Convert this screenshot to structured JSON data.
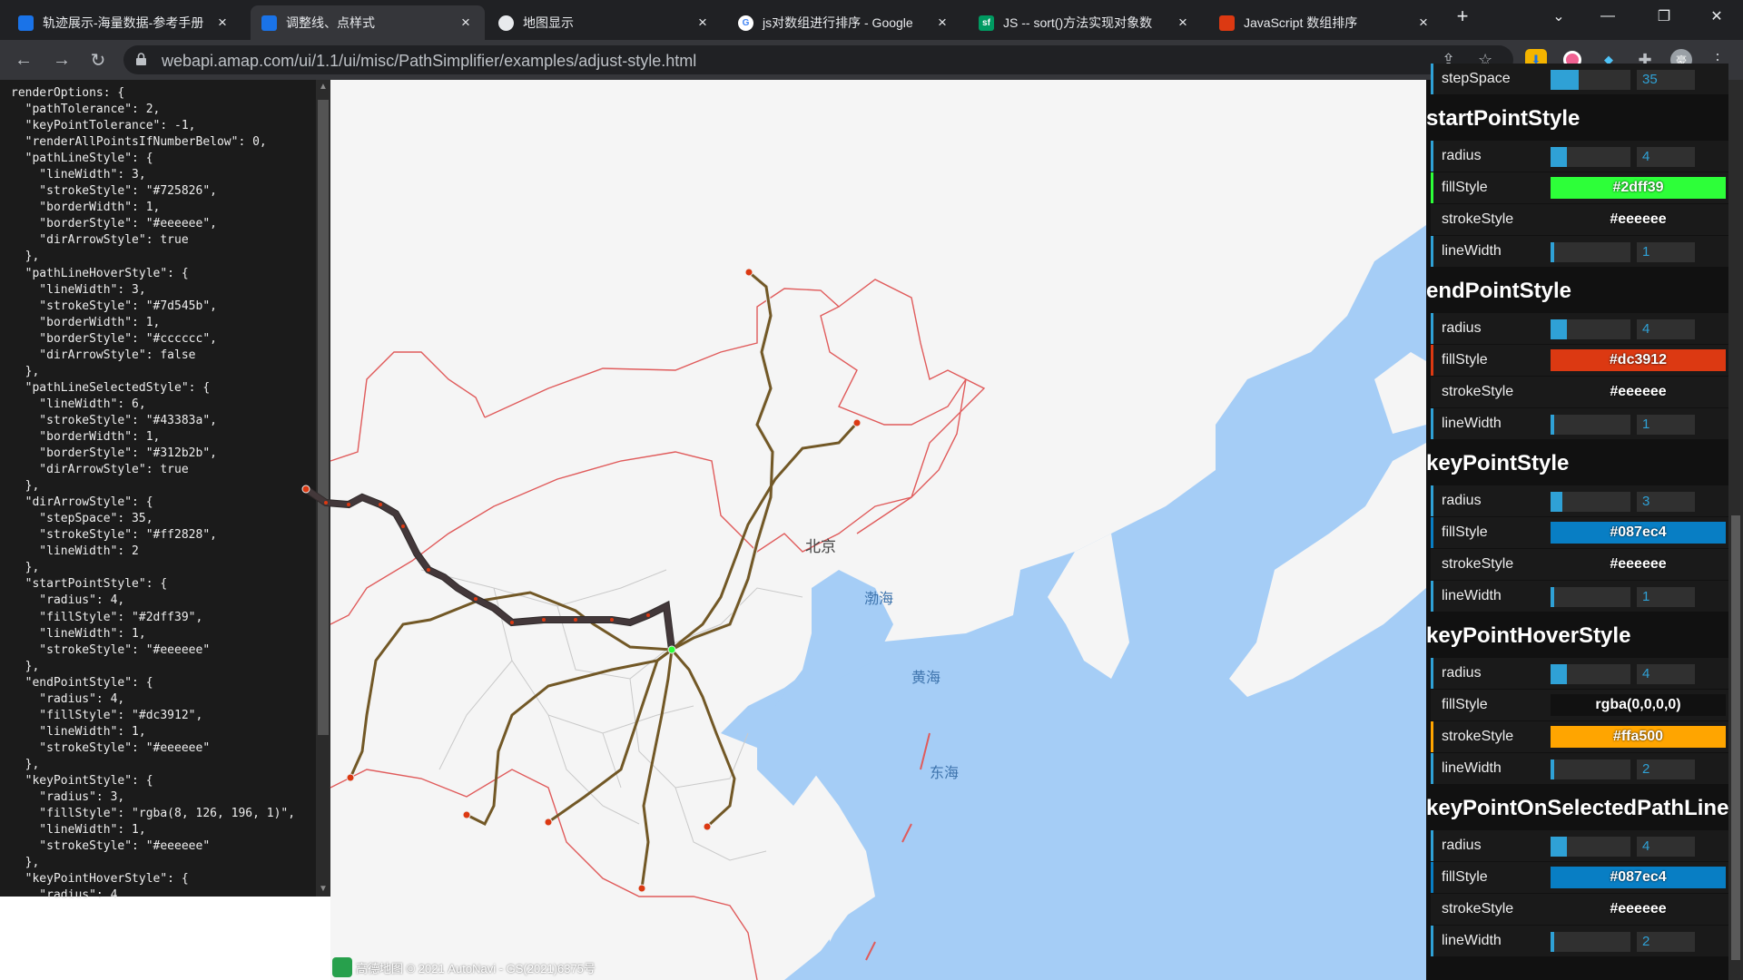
{
  "browser": {
    "tabs": [
      {
        "title": "轨迹展示-海量数据-参考手册",
        "icon": "amap-icon",
        "active": false
      },
      {
        "title": "调整线、点样式",
        "icon": "amap-icon",
        "active": true
      },
      {
        "title": "地图显示",
        "icon": "globe-icon",
        "active": false
      },
      {
        "title": "js对数组进行排序 - Google",
        "icon": "google-icon",
        "active": false
      },
      {
        "title": "JS -- sort()方法实现对象数",
        "icon": "segmentfault-icon",
        "active": false
      },
      {
        "title": "JavaScript 数组排序",
        "icon": "w3-icon",
        "active": false
      }
    ],
    "new_tab_label": "+",
    "url": "webapi.amap.com/ui/1.1/ui/misc/PathSimplifier/examples/adjust-style.html",
    "profile_initial": "豪"
  },
  "code": {
    "lines": [
      "renderOptions: {",
      "  \"pathTolerance\": 2,",
      "  \"keyPointTolerance\": -1,",
      "  \"renderAllPointsIfNumberBelow\": 0,",
      "  \"pathLineStyle\": {",
      "    \"lineWidth\": 3,",
      "    \"strokeStyle\": \"#725826\",",
      "    \"borderWidth\": 1,",
      "    \"borderStyle\": \"#eeeeee\",",
      "    \"dirArrowStyle\": true",
      "  },",
      "  \"pathLineHoverStyle\": {",
      "    \"lineWidth\": 3,",
      "    \"strokeStyle\": \"#7d545b\",",
      "    \"borderWidth\": 1,",
      "    \"borderStyle\": \"#cccccc\",",
      "    \"dirArrowStyle\": false",
      "  },",
      "  \"pathLineSelectedStyle\": {",
      "    \"lineWidth\": 6,",
      "    \"strokeStyle\": \"#43383a\",",
      "    \"borderWidth\": 1,",
      "    \"borderStyle\": \"#312b2b\",",
      "    \"dirArrowStyle\": true",
      "  },",
      "  \"dirArrowStyle\": {",
      "    \"stepSpace\": 35,",
      "    \"strokeStyle\": \"#ff2828\",",
      "    \"lineWidth\": 2",
      "  },",
      "  \"startPointStyle\": {",
      "    \"radius\": 4,",
      "    \"fillStyle\": \"#2dff39\",",
      "    \"lineWidth\": 1,",
      "    \"strokeStyle\": \"#eeeeee\"",
      "  },",
      "  \"endPointStyle\": {",
      "    \"radius\": 4,",
      "    \"fillStyle\": \"#dc3912\",",
      "    \"lineWidth\": 1,",
      "    \"strokeStyle\": \"#eeeeee\"",
      "  },",
      "  \"keyPointStyle\": {",
      "    \"radius\": 3,",
      "    \"fillStyle\": \"rgba(8, 126, 196, 1)\",",
      "    \"lineWidth\": 1,",
      "    \"strokeStyle\": \"#eeeeee\"",
      "  },",
      "  \"keyPointHoverStyle\": {",
      "    \"radius\": 4"
    ]
  },
  "map": {
    "city_label": "北京",
    "seas": [
      "渤海",
      "黄海",
      "东海"
    ],
    "copyright": "高德地图 © 2021 AutoNavi - GS(2021)6375号",
    "colors": {
      "water": "#a5cdf6",
      "land": "#f5f5f5",
      "path": "#725826",
      "selected_path": "#43383a",
      "border": "#e05b5b",
      "start": "#2dff39",
      "end": "#dc3912"
    }
  },
  "panel": {
    "sections": [
      {
        "title": "",
        "rows": [
          {
            "label": "stepSpace",
            "type": "slider",
            "value": "35",
            "level": 0.35
          }
        ]
      },
      {
        "title": "startPointStyle",
        "rows": [
          {
            "label": "radius",
            "type": "slider",
            "value": "4",
            "level": 0.2
          },
          {
            "label": "fillStyle",
            "type": "color",
            "value": "#2dff39",
            "bg": "#2dff39"
          },
          {
            "label": "strokeStyle",
            "type": "color",
            "value": "#eeeeee",
            "bg": "#1a1a1a"
          },
          {
            "label": "lineWidth",
            "type": "slider",
            "value": "1",
            "level": 0.0
          }
        ]
      },
      {
        "title": "endPointStyle",
        "rows": [
          {
            "label": "radius",
            "type": "slider",
            "value": "4",
            "level": 0.2
          },
          {
            "label": "fillStyle",
            "type": "color",
            "value": "#dc3912",
            "bg": "#dc3912"
          },
          {
            "label": "strokeStyle",
            "type": "color",
            "value": "#eeeeee",
            "bg": "#1a1a1a"
          },
          {
            "label": "lineWidth",
            "type": "slider",
            "value": "1",
            "level": 0.0
          }
        ]
      },
      {
        "title": "keyPointStyle",
        "rows": [
          {
            "label": "radius",
            "type": "slider",
            "value": "3",
            "level": 0.15
          },
          {
            "label": "fillStyle",
            "type": "color",
            "value": "#087ec4",
            "bg": "#087ec4"
          },
          {
            "label": "strokeStyle",
            "type": "color",
            "value": "#eeeeee",
            "bg": "#1a1a1a"
          },
          {
            "label": "lineWidth",
            "type": "slider",
            "value": "1",
            "level": 0.0
          }
        ]
      },
      {
        "title": "keyPointHoverStyle",
        "rows": [
          {
            "label": "radius",
            "type": "slider",
            "value": "4",
            "level": 0.2
          },
          {
            "label": "fillStyle",
            "type": "color",
            "value": "rgba(0,0,0,0)",
            "bg": "#111111"
          },
          {
            "label": "strokeStyle",
            "type": "color",
            "value": "#ffa500",
            "bg": "#ffa500"
          },
          {
            "label": "lineWidth",
            "type": "slider",
            "value": "2",
            "level": 0.05
          }
        ]
      },
      {
        "title": "keyPointOnSelectedPathLine",
        "rows": [
          {
            "label": "radius",
            "type": "slider",
            "value": "4",
            "level": 0.2
          },
          {
            "label": "fillStyle",
            "type": "color",
            "value": "#087ec4",
            "bg": "#087ec4"
          },
          {
            "label": "strokeStyle",
            "type": "color",
            "value": "#eeeeee",
            "bg": "#1a1a1a"
          },
          {
            "label": "lineWidth",
            "type": "slider",
            "value": "2",
            "level": 0.05
          }
        ]
      }
    ]
  }
}
